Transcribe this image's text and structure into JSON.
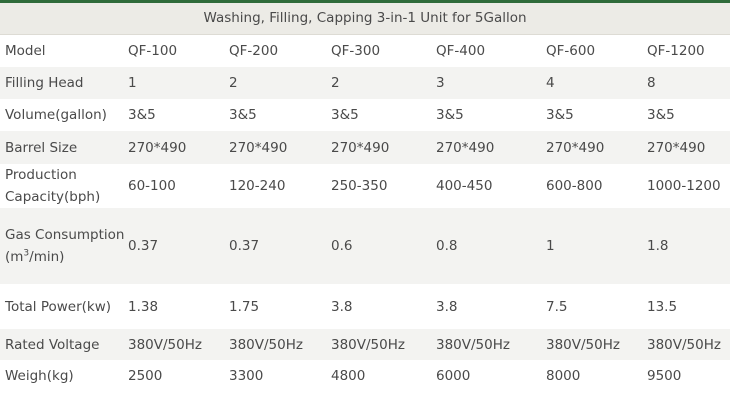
{
  "title": "Washing, Filling, Capping 3-in-1 Unit for 5Gallon",
  "rows": [
    {
      "label": "Model",
      "values": [
        "QF-100",
        "QF-200",
        "QF-300",
        "QF-400",
        "QF-600",
        "QF-1200"
      ]
    },
    {
      "label": "Filling Head",
      "values": [
        "1",
        "2",
        "2",
        "3",
        "4",
        "8"
      ]
    },
    {
      "label": "Volume(gallon)",
      "values": [
        "3&5",
        "3&5",
        "3&5",
        "3&5",
        "3&5",
        "3&5"
      ]
    },
    {
      "label": "Barrel Size",
      "values": [
        "270*490",
        "270*490",
        "270*490",
        "270*490",
        "270*490",
        "270*490"
      ]
    },
    {
      "label": "Production Capacity(bph)",
      "values": [
        "60-100",
        "120-240",
        "250-350",
        "400-450",
        "600-800",
        "1000-1200"
      ]
    },
    {
      "label_prefix": "Gas Consumption (m",
      "label_sup": "3",
      "label_suffix": "/min)",
      "values": [
        "0.37",
        "0.37",
        "0.6",
        "0.8",
        "1",
        "1.8"
      ]
    },
    {
      "label": "Total Power(kw)",
      "values": [
        "1.38",
        "1.75",
        "3.8",
        "3.8",
        "7.5",
        "13.5"
      ]
    },
    {
      "label": "Rated Voltage",
      "values": [
        "380V/50Hz",
        "380V/50Hz",
        "380V/50Hz",
        "380V/50Hz",
        "380V/50Hz",
        "380V/50Hz"
      ]
    },
    {
      "label": "Weigh(kg)",
      "values": [
        "2500",
        "3300",
        "4800",
        "6000",
        "8000",
        "9500"
      ]
    }
  ]
}
